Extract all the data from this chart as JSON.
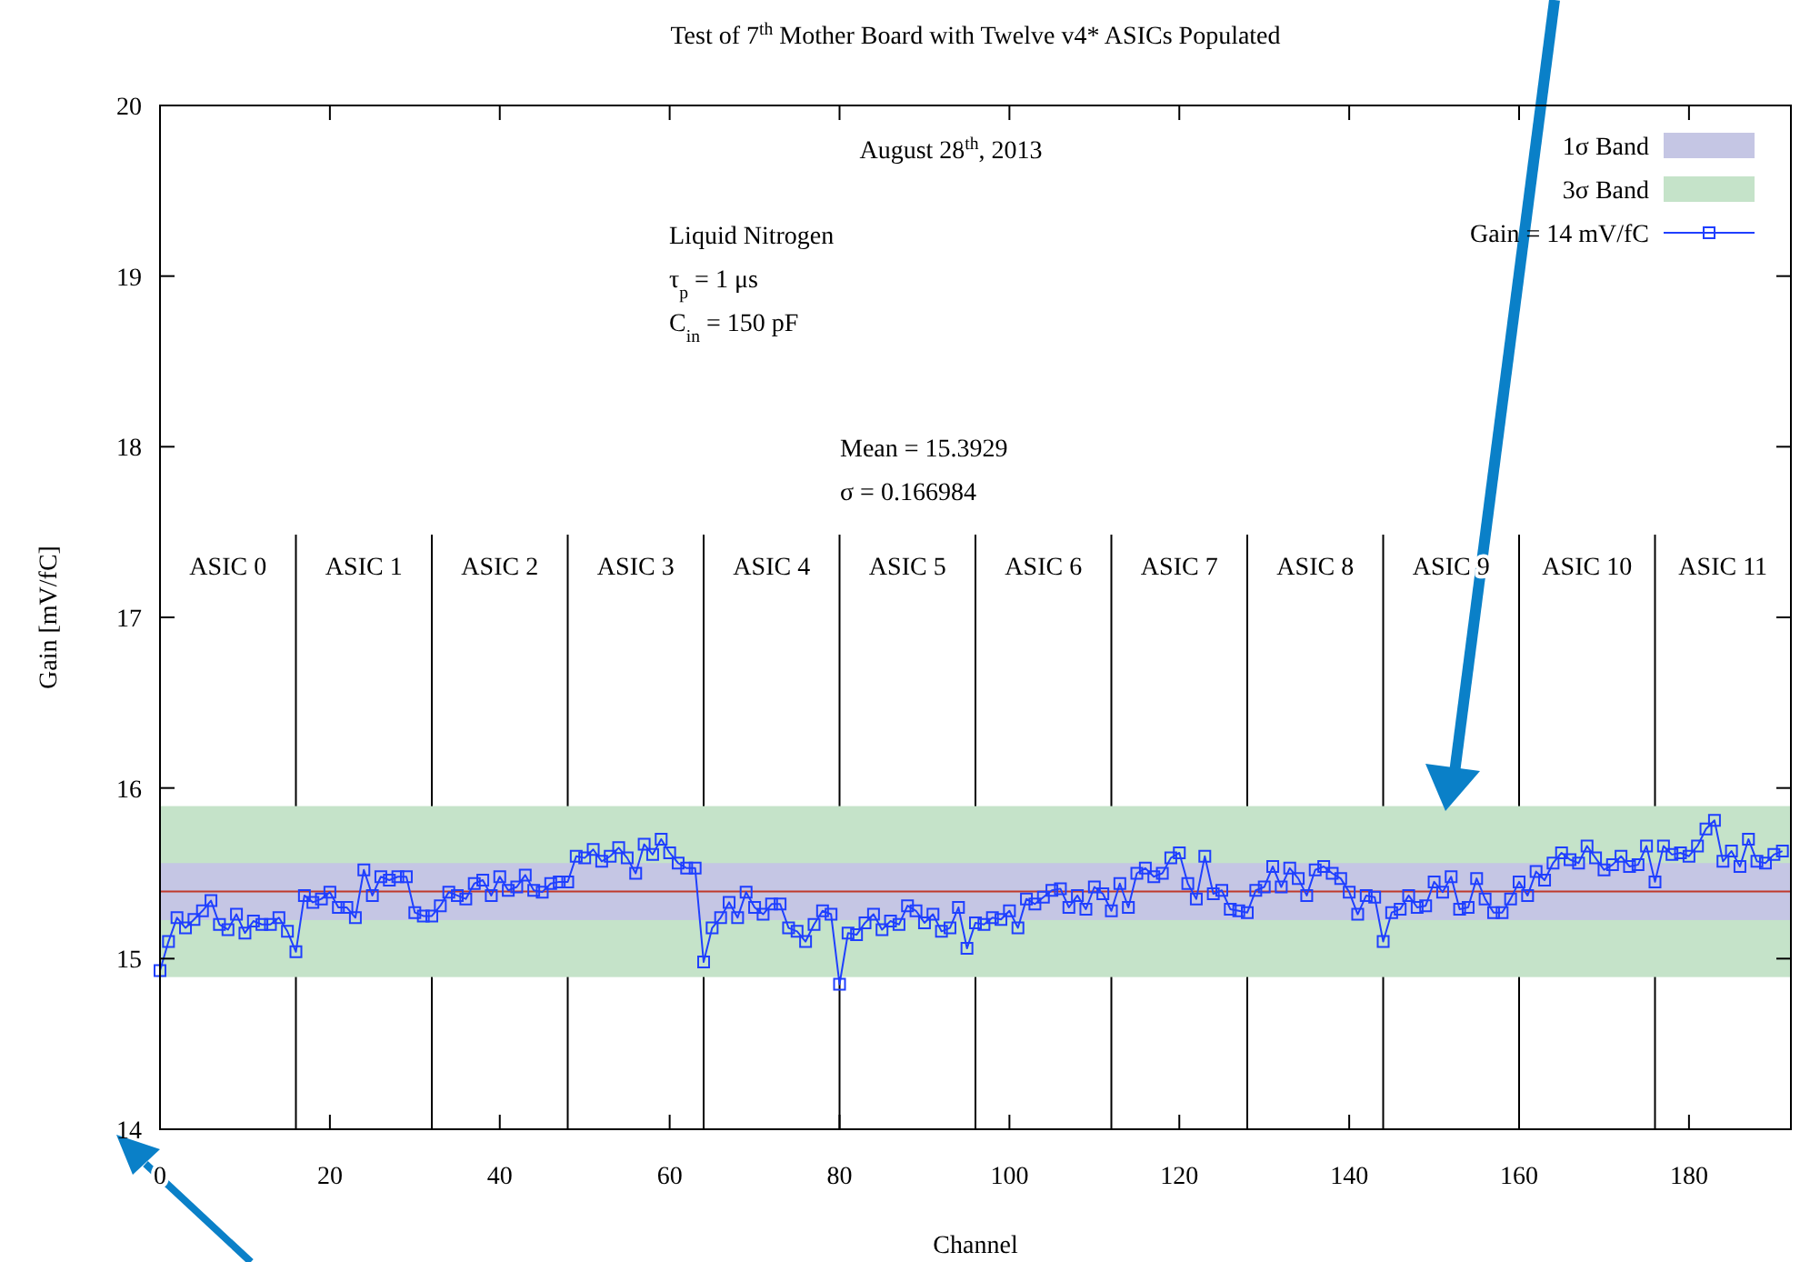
{
  "chart_data": {
    "type": "line",
    "title": "Test of 7$^{th}$ Mother Board with Twelve v4* ASICs Populated",
    "xlabel": "Channel",
    "ylabel": "Gain [mV/fC]",
    "xlim": [
      0,
      192
    ],
    "xticks": [
      0,
      20,
      40,
      60,
      80,
      100,
      120,
      140,
      160,
      180
    ],
    "ylim": [
      14,
      20
    ],
    "yticks": [
      14,
      15,
      16,
      17,
      18,
      19,
      20
    ],
    "grid": false,
    "legend": "top right",
    "marker": "square",
    "line_style": "solid",
    "x": [
      0,
      1,
      2,
      3,
      4,
      5,
      6,
      7,
      8,
      9,
      10,
      11,
      12,
      13,
      14,
      15,
      16,
      17,
      18,
      19,
      20,
      21,
      22,
      23,
      24,
      25,
      26,
      27,
      28,
      29,
      30,
      31,
      32,
      33,
      34,
      35,
      36,
      37,
      38,
      39,
      40,
      41,
      42,
      43,
      44,
      45,
      46,
      47,
      48,
      49,
      50,
      51,
      52,
      53,
      54,
      55,
      56,
      57,
      58,
      59,
      60,
      61,
      62,
      63,
      64,
      65,
      66,
      67,
      68,
      69,
      70,
      71,
      72,
      73,
      74,
      75,
      76,
      77,
      78,
      79,
      80,
      81,
      82,
      83,
      84,
      85,
      86,
      87,
      88,
      89,
      90,
      91,
      92,
      93,
      94,
      95,
      96,
      97,
      98,
      99,
      100,
      101,
      102,
      103,
      104,
      105,
      106,
      107,
      108,
      109,
      110,
      111,
      112,
      113,
      114,
      115,
      116,
      117,
      118,
      119,
      120,
      121,
      122,
      123,
      124,
      125,
      126,
      127,
      128,
      129,
      130,
      131,
      132,
      133,
      134,
      135,
      136,
      137,
      138,
      139,
      140,
      141,
      142,
      143,
      144,
      145,
      146,
      147,
      148,
      149,
      150,
      151,
      152,
      153,
      154,
      155,
      156,
      157,
      158,
      159,
      160,
      161,
      162,
      163,
      164,
      165,
      166,
      167,
      168,
      169,
      170,
      171,
      172,
      173,
      174,
      175,
      176,
      177,
      178,
      179,
      180,
      181,
      182,
      183,
      184,
      185,
      186,
      187,
      188,
      189,
      190,
      191
    ],
    "series": [
      {
        "name": "Gain = 14 mV/fC",
        "color": "#1f3fff",
        "values": [
          14.93,
          15.1,
          15.24,
          15.18,
          15.23,
          15.28,
          15.34,
          15.2,
          15.17,
          15.26,
          15.15,
          15.22,
          15.2,
          15.2,
          15.24,
          15.16,
          15.04,
          15.37,
          15.33,
          15.35,
          15.39,
          15.3,
          15.3,
          15.24,
          15.52,
          15.37,
          15.48,
          15.46,
          15.48,
          15.48,
          15.27,
          15.25,
          15.25,
          15.31,
          15.39,
          15.37,
          15.35,
          15.44,
          15.46,
          15.37,
          15.48,
          15.4,
          15.42,
          15.49,
          15.4,
          15.39,
          15.44,
          15.45,
          15.45,
          15.6,
          15.59,
          15.64,
          15.57,
          15.6,
          15.65,
          15.59,
          15.5,
          15.67,
          15.61,
          15.7,
          15.62,
          15.56,
          15.53,
          15.53,
          14.98,
          15.18,
          15.24,
          15.33,
          15.24,
          15.39,
          15.3,
          15.26,
          15.32,
          15.32,
          15.18,
          15.16,
          15.1,
          15.2,
          15.28,
          15.26,
          14.85,
          15.15,
          15.14,
          15.21,
          15.26,
          15.17,
          15.22,
          15.2,
          15.31,
          15.28,
          15.21,
          15.26,
          15.16,
          15.18,
          15.3,
          15.06,
          15.21,
          15.2,
          15.24,
          15.23,
          15.28,
          15.18,
          15.35,
          15.32,
          15.36,
          15.4,
          15.41,
          15.3,
          15.37,
          15.29,
          15.42,
          15.38,
          15.28,
          15.44,
          15.3,
          15.5,
          15.53,
          15.48,
          15.5,
          15.59,
          15.62,
          15.44,
          15.35,
          15.6,
          15.38,
          15.4,
          15.29,
          15.28,
          15.27,
          15.4,
          15.42,
          15.54,
          15.42,
          15.53,
          15.47,
          15.37,
          15.52,
          15.54,
          15.5,
          15.47,
          15.39,
          15.26,
          15.37,
          15.36,
          15.1,
          15.27,
          15.29,
          15.37,
          15.3,
          15.31,
          15.45,
          15.39,
          15.48,
          15.29,
          15.3,
          15.47,
          15.35,
          15.27,
          15.27,
          15.35,
          15.45,
          15.37,
          15.51,
          15.46,
          15.56,
          15.62,
          15.58,
          15.56,
          15.66,
          15.59,
          15.52,
          15.55,
          15.6,
          15.54,
          15.55,
          15.66,
          15.45,
          15.66,
          15.61,
          15.62,
          15.6,
          15.66,
          15.76,
          15.81,
          15.57,
          15.63,
          15.54,
          15.7,
          15.57,
          15.56,
          15.61,
          15.63
        ]
      }
    ],
    "ref_lines": [
      {
        "axis": "y",
        "value": 15.3929,
        "color": "#c0392b"
      },
      {
        "axis": "x",
        "value": 16,
        "color": "#000000"
      },
      {
        "axis": "x",
        "value": 32,
        "color": "#000000"
      },
      {
        "axis": "x",
        "value": 48,
        "color": "#000000"
      },
      {
        "axis": "x",
        "value": 64,
        "color": "#000000"
      },
      {
        "axis": "x",
        "value": 80,
        "color": "#000000"
      },
      {
        "axis": "x",
        "value": 96,
        "color": "#000000"
      },
      {
        "axis": "x",
        "value": 112,
        "color": "#000000"
      },
      {
        "axis": "x",
        "value": 128,
        "color": "#000000"
      },
      {
        "axis": "x",
        "value": 144,
        "color": "#000000"
      },
      {
        "axis": "x",
        "value": 160,
        "color": "#000000"
      },
      {
        "axis": "x",
        "value": 176,
        "color": "#000000"
      }
    ],
    "bands": [
      {
        "axis": "y",
        "from": 15.2259,
        "to": 15.5599,
        "label": "1σ Band",
        "color": "#c5c6e4"
      },
      {
        "axis": "y",
        "from": 14.8919,
        "to": 15.8939,
        "label": "3σ Band",
        "color": "#c5e3c9"
      }
    ],
    "annotations": [
      "August 28$^{th}$, 2013",
      "Liquid Nitrogen",
      "τ$_{p}$ = 1 μs",
      "C$_{in}$ = 150 pF",
      "Mean = 15.3929",
      "σ = 0.166984",
      "ASIC 0",
      "ASIC 1",
      "ASIC 2",
      "ASIC 3",
      "ASIC 4",
      "ASIC 5",
      "ASIC 6",
      "ASIC 7",
      "ASIC 8",
      "ASIC 9",
      "ASIC 10",
      "ASIC 11"
    ]
  }
}
